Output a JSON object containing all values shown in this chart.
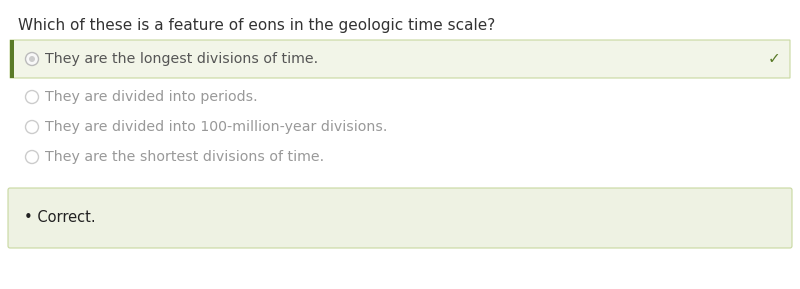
{
  "question": "Which of these is a feature of eons in the geologic time scale?",
  "options_fixed": [
    "They are the longest divisions of time.",
    "They are divided into periods.",
    "They are divided into 100-million-year divisions.",
    "They are the shortest divisions of time."
  ],
  "correct_label": "Correct.",
  "bg_color": "#ffffff",
  "selected_bg": "#f2f5e8",
  "selected_left_bar": "#5a7a28",
  "selected_border": "#c8d8a0",
  "feedback_bg": "#eef2e3",
  "feedback_border": "#c8d8a0",
  "question_color": "#333333",
  "option_color_selected": "#555555",
  "option_color_unselected": "#999999",
  "check_color": "#5a7a28",
  "radio_edge_selected": "#bbbbbb",
  "radio_fill_selected": "#cccccc",
  "radio_edge_unselected": "#cccccc",
  "bullet_color": "#222222",
  "question_fontsize": 11.0,
  "option_fontsize": 10.2,
  "feedback_fontsize": 10.5
}
